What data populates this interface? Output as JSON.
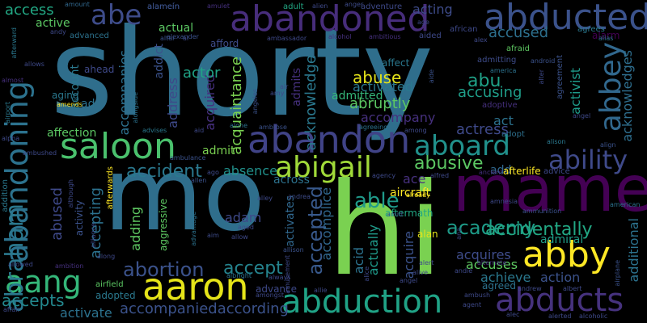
{
  "words": [
    {
      "text": "shorty",
      "color": "#2f6e8c"
    },
    {
      "text": "mo",
      "color": "#2f6e8c"
    },
    {
      "text": "hi",
      "color": "#7ad151"
    },
    {
      "text": "mame",
      "color": "#440154"
    },
    {
      "text": "abandoned",
      "color": "#472d7b"
    },
    {
      "text": "abducted",
      "color": "#3b528b"
    },
    {
      "text": "abe",
      "color": "#3e4c8a"
    },
    {
      "text": "abandon",
      "color": "#404387"
    },
    {
      "text": "saloon",
      "color": "#4ac16d"
    },
    {
      "text": "abandoning",
      "color": "#2c728e"
    },
    {
      "text": "abbey",
      "color": "#31688e"
    },
    {
      "text": "ability",
      "color": "#3f4a8a"
    },
    {
      "text": "aboard",
      "color": "#21918c"
    },
    {
      "text": "abigail",
      "color": "#a0da39"
    },
    {
      "text": "abby",
      "color": "#fde725"
    },
    {
      "text": "aaron",
      "color": "#e5e419"
    },
    {
      "text": "abduction",
      "color": "#20a386"
    },
    {
      "text": "abducts",
      "color": "#46327e"
    },
    {
      "text": "aang",
      "color": "#34b679"
    },
    {
      "text": "abraham",
      "color": "#2a788e"
    },
    {
      "text": "abortion",
      "color": "#3b528b"
    },
    {
      "text": "accept",
      "color": "#25838e"
    },
    {
      "text": "abusive",
      "color": "#5cc863"
    },
    {
      "text": "able",
      "color": "#1f9a8a"
    },
    {
      "text": "academy",
      "color": "#1e9c89"
    },
    {
      "text": "accidentally",
      "color": "#22a884"
    },
    {
      "text": "accepted",
      "color": "#38598c"
    },
    {
      "text": "accident",
      "color": "#2a788e"
    },
    {
      "text": "absence",
      "color": "#21918c"
    },
    {
      "text": "accompaniedaccording",
      "color": "#3b528b"
    },
    {
      "text": "activate",
      "color": "#2c728e"
    },
    {
      "text": "accepts",
      "color": "#23888e"
    },
    {
      "text": "abused",
      "color": "#3e4989"
    },
    {
      "text": "abuse",
      "color": "#e5e419"
    },
    {
      "text": "abruptly",
      "color": "#5cc863"
    },
    {
      "text": "abu",
      "color": "#1fa187"
    },
    {
      "text": "accusing",
      "color": "#1f9e89"
    },
    {
      "text": "accused",
      "color": "#2d708e"
    },
    {
      "text": "acknowledges",
      "color": "#2e6e8e"
    },
    {
      "text": "acknowledge",
      "color": "#2a788e"
    },
    {
      "text": "acquired",
      "color": "#46307e"
    },
    {
      "text": "acquaintance",
      "color": "#7ad151"
    },
    {
      "text": "accompany",
      "color": "#46307e"
    },
    {
      "text": "address",
      "color": "#3e4989"
    },
    {
      "text": "actor",
      "color": "#20a386"
    },
    {
      "text": "access",
      "color": "#22a884"
    },
    {
      "text": "activist",
      "color": "#1e9b8a"
    },
    {
      "text": "accompanies",
      "color": "#2d708e"
    },
    {
      "text": "accomplice",
      "color": "#30678d"
    },
    {
      "text": "acid",
      "color": "#2c728e"
    },
    {
      "text": "acquires",
      "color": "#3e4c8a"
    },
    {
      "text": "accuses",
      "color": "#5ec962"
    },
    {
      "text": "achieve",
      "color": "#2a788e"
    },
    {
      "text": "action",
      "color": "#3b528b"
    },
    {
      "text": "admiral",
      "color": "#1f9e89"
    },
    {
      "text": "adam",
      "color": "#3e4989"
    },
    {
      "text": "adding",
      "color": "#5ec962"
    },
    {
      "text": "accepting",
      "color": "#2c728e"
    },
    {
      "text": "actually",
      "color": "#1f9a8a"
    },
    {
      "text": "acquire",
      "color": "#3b528b"
    },
    {
      "text": "activated",
      "color": "#2a788e"
    },
    {
      "text": "actress",
      "color": "#3e4989"
    },
    {
      "text": "act",
      "color": "#2c728e"
    },
    {
      "text": "admit",
      "color": "#7ad151"
    },
    {
      "text": "activity",
      "color": "#3b528b"
    },
    {
      "text": "additional",
      "color": "#2c728e"
    },
    {
      "text": "adopted",
      "color": "#2a788e"
    },
    {
      "text": "advance",
      "color": "#3e4989"
    },
    {
      "text": "alan",
      "color": "#e5e419"
    },
    {
      "text": "ace",
      "color": "#46307e"
    },
    {
      "text": "acting",
      "color": "#3e4c8a"
    },
    {
      "text": "active",
      "color": "#5cc863"
    },
    {
      "text": "actual",
      "color": "#5cc863"
    },
    {
      "text": "addict",
      "color": "#3b528b"
    },
    {
      "text": "admitted",
      "color": "#34b679"
    },
    {
      "text": "admits",
      "color": "#46307e"
    },
    {
      "text": "affection",
      "color": "#5cc863"
    },
    {
      "text": "add",
      "color": "#31688e"
    },
    {
      "text": "ad",
      "color": "#2c728e"
    },
    {
      "text": "account",
      "color": "#2a788e"
    },
    {
      "text": "agreed",
      "color": "#2c728e"
    },
    {
      "text": "aggressive",
      "color": "#5ec962"
    },
    {
      "text": "activates",
      "color": "#31688e"
    },
    {
      "text": "across",
      "color": "#2c728e"
    },
    {
      "text": "afterlife",
      "color": "#fde725"
    },
    {
      "text": "advice",
      "color": "#3e4989"
    },
    {
      "text": "aircraft",
      "color": "#fde725"
    },
    {
      "text": "aftermath",
      "color": "#22a884"
    },
    {
      "text": "admitting",
      "color": "#3e4c8a"
    },
    {
      "text": "adoptive",
      "color": "#46307e"
    },
    {
      "text": "adopt",
      "color": "#2d708e"
    },
    {
      "text": "affect",
      "color": "#2a788e"
    },
    {
      "text": "ahead",
      "color": "#3e4989"
    },
    {
      "text": "aging",
      "color": "#2a788e"
    },
    {
      "text": "advanced",
      "color": "#2c728e"
    },
    {
      "text": "afford",
      "color": "#3e4c8a"
    },
    {
      "text": "alarm",
      "color": "#440154"
    },
    {
      "text": "agrees",
      "color": "#2a788e"
    },
    {
      "text": "african",
      "color": "#3e4989"
    },
    {
      "text": "agreement",
      "color": "#3b528b"
    },
    {
      "text": "afraid",
      "color": "#5ec962"
    },
    {
      "text": "adventure",
      "color": "#3e4989"
    },
    {
      "text": "adult",
      "color": "#22a884"
    },
    {
      "text": "aided",
      "color": "#3e4989"
    },
    {
      "text": "alameín",
      "color": "#3b528b"
    },
    {
      "text": "amount",
      "color": "#31688e"
    },
    {
      "text": "alamein",
      "color": "#3b528b"
    },
    {
      "text": "afterward",
      "color": "#2a788e"
    },
    {
      "text": "andy",
      "color": "#3e4989"
    },
    {
      "text": "altar",
      "color": "#3b528b"
    },
    {
      "text": "al",
      "color": "#3e4989"
    },
    {
      "text": "amulet",
      "color": "#46307e"
    },
    {
      "text": "alien",
      "color": "#3e4989"
    },
    {
      "text": "anger",
      "color": "#3e4c8a"
    },
    {
      "text": "age",
      "color": "#3e4989"
    },
    {
      "text": "alex",
      "color": "#3e4989"
    },
    {
      "text": "alias",
      "color": "#2c728e"
    },
    {
      "text": "alexander",
      "color": "#3b528b"
    },
    {
      "text": "ambassador",
      "color": "#3e4989"
    },
    {
      "text": "alcohol",
      "color": "#46307e"
    },
    {
      "text": "ambitious",
      "color": "#46307e"
    },
    {
      "text": "allows",
      "color": "#3e4989"
    },
    {
      "text": "almost",
      "color": "#46307e"
    },
    {
      "text": "android",
      "color": "#3b528b"
    },
    {
      "text": "america",
      "color": "#2c728e"
    },
    {
      "text": "alter",
      "color": "#3e4989"
    },
    {
      "text": "airport",
      "color": "#2a788e"
    },
    {
      "text": "amends",
      "color": "#fde725"
    },
    {
      "text": "alongside",
      "color": "#2c728e"
    },
    {
      "text": "angeles",
      "color": "#3b528b"
    },
    {
      "text": "amy",
      "color": "#3e4989"
    },
    {
      "text": "air",
      "color": "#3e4c8a"
    },
    {
      "text": "aide",
      "color": "#3b528b"
    },
    {
      "text": "agreeing",
      "color": "#2c728e"
    },
    {
      "text": "among",
      "color": "#3e4989"
    },
    {
      "text": "advises",
      "color": "#2a788e"
    },
    {
      "text": "aid",
      "color": "#3e4989"
    },
    {
      "text": "alone",
      "color": "#2c728e"
    },
    {
      "text": "ambrose",
      "color": "#3b528b"
    },
    {
      "text": "angel",
      "color": "#3e4989"
    },
    {
      "text": "alison",
      "color": "#2a788e"
    },
    {
      "text": "align",
      "color": "#3b528b"
    },
    {
      "text": "alpha",
      "color": "#3e4989"
    },
    {
      "text": "ambushed",
      "color": "#3e4989"
    },
    {
      "text": "ago",
      "color": "#3e4989"
    },
    {
      "text": "ambulance",
      "color": "#3b528b"
    },
    {
      "text": "agency",
      "color": "#3e4989"
    },
    {
      "text": "alfred",
      "color": "#3e4989"
    },
    {
      "text": "ancient",
      "color": "#46307e"
    },
    {
      "text": "allen",
      "color": "#3b528b"
    },
    {
      "text": "alley",
      "color": "#3e4989"
    },
    {
      "text": "andrea",
      "color": "#3e4c8a"
    },
    {
      "text": "already",
      "color": "#fde725"
    },
    {
      "text": "amnesia",
      "color": "#3e4989"
    },
    {
      "text": "ammunition",
      "color": "#3b528b"
    },
    {
      "text": "american",
      "color": "#2c728e"
    },
    {
      "text": "addition",
      "color": "#2a788e"
    },
    {
      "text": "although",
      "color": "#3e4989"
    },
    {
      "text": "afterwards",
      "color": "#fde725"
    },
    {
      "text": "alliance",
      "color": "#3e4989"
    },
    {
      "text": "aim",
      "color": "#3e4c8a"
    },
    {
      "text": "advantage",
      "color": "#2c728e"
    },
    {
      "text": "aged",
      "color": "#3e4989"
    },
    {
      "text": "allow",
      "color": "#3e4989"
    },
    {
      "text": "amid",
      "color": "#3b528b"
    },
    {
      "text": "ana",
      "color": "#3e4989"
    },
    {
      "text": "along",
      "color": "#3e4989"
    },
    {
      "text": "allowed",
      "color": "#3e4989"
    },
    {
      "text": "ambition",
      "color": "#46307e"
    },
    {
      "text": "airfield",
      "color": "#5cc863"
    },
    {
      "text": "albright",
      "color": "#2c728e"
    },
    {
      "text": "always",
      "color": "#3e4989"
    },
    {
      "text": "amusement",
      "color": "#3e4989"
    },
    {
      "text": "allison",
      "color": "#3b528b"
    },
    {
      "text": "alice",
      "color": "#3e4989"
    },
    {
      "text": "alive",
      "color": "#3e4989"
    },
    {
      "text": "alert",
      "color": "#3e4989"
    },
    {
      "text": "andie",
      "color": "#3e4989"
    },
    {
      "text": "alternate",
      "color": "#46307e"
    },
    {
      "text": "airplane",
      "color": "#3b528b"
    },
    {
      "text": "angel",
      "color": "#3e4989"
    },
    {
      "text": "andrew",
      "color": "#3e4989"
    },
    {
      "text": "albert",
      "color": "#3e4989"
    },
    {
      "text": "amongst",
      "color": "#3e4989"
    },
    {
      "text": "allie",
      "color": "#3e4989"
    },
    {
      "text": "affair",
      "color": "#3e4989"
    },
    {
      "text": "ambush",
      "color": "#3e4989"
    },
    {
      "text": "agent",
      "color": "#3e4989"
    },
    {
      "text": "alec",
      "color": "#3e4989"
    },
    {
      "text": "alerted",
      "color": "#3e4989"
    },
    {
      "text": "alcoholic",
      "color": "#3e4989"
    }
  ]
}
